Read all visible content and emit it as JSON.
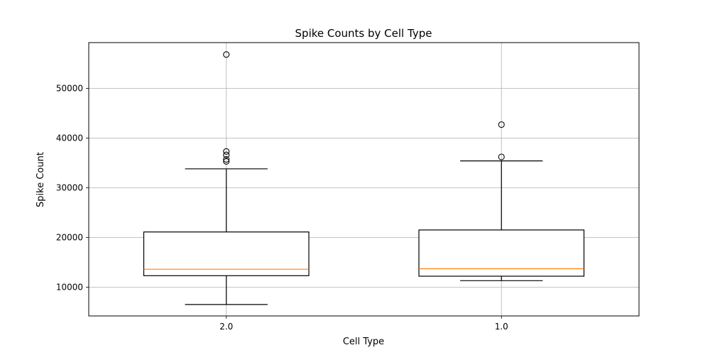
{
  "chart_data": {
    "type": "box",
    "title": "Spike Counts by Cell Type",
    "xlabel": "Cell Type",
    "ylabel": "Spike Count",
    "categories": [
      "2.0",
      "1.0"
    ],
    "ylim": [
      4200,
      59200
    ],
    "yticks": [
      10000,
      20000,
      30000,
      40000,
      50000
    ],
    "ytick_labels": [
      "10000",
      "20000",
      "30000",
      "40000",
      "50000"
    ],
    "grid": true,
    "boxes": [
      {
        "category": "2.0",
        "whislo": 6500,
        "q1": 12300,
        "med": 13600,
        "q3": 21100,
        "whishi": 33800,
        "fliers": [
          35300,
          35700,
          36600,
          37300,
          56800
        ]
      },
      {
        "category": "1.0",
        "whislo": 11300,
        "q1": 12200,
        "med": 13700,
        "q3": 21500,
        "whishi": 35400,
        "fliers": [
          36200,
          42700
        ]
      }
    ],
    "colors": {
      "box": "#000000",
      "median": "#ff7f0e",
      "grid": "#b0b0b0",
      "flier": "#000000"
    }
  }
}
